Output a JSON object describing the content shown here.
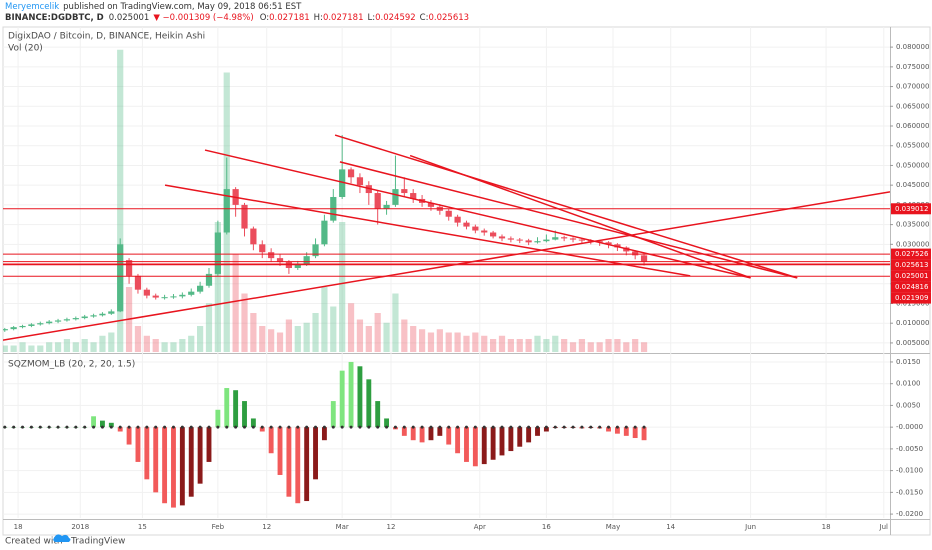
{
  "header": {
    "author": "Meryemcelik",
    "published": "published on TradingView.com, May 09, 2018 06:51 EST",
    "symbol": "BINANCE:DGDBTC, D",
    "last": "0.025001",
    "change": "▼ −0.001309 (−4.98%)",
    "ohlc": [
      "O:",
      "0.027181",
      "H:",
      "0.027181",
      "L:",
      "0.024592",
      "C:",
      "0.025613"
    ]
  },
  "chart_data": [
    {
      "type": "candlestick",
      "title": "DigixDAO / Bitcoin, D, BINANCE, Heikin Ashi",
      "up_color": "#53b987",
      "down_color": "#eb4d5c",
      "line_color": "#e8141e",
      "x": [
        -17,
        -15,
        -13,
        -11,
        -9,
        -7,
        -5,
        -3,
        -1,
        1,
        3,
        5,
        7,
        9,
        11,
        13,
        15,
        17,
        19,
        21,
        23,
        25,
        27,
        29,
        31,
        33,
        35,
        37,
        39,
        41,
        43,
        45,
        47,
        49,
        51,
        53,
        55,
        57,
        59,
        61,
        63,
        65,
        67,
        69,
        71,
        73,
        75,
        77,
        79,
        81,
        83,
        85,
        87,
        89,
        91,
        93,
        95,
        97,
        99,
        101,
        103,
        105,
        107,
        109,
        111,
        113,
        115,
        117,
        119,
        121,
        123,
        125,
        127
      ],
      "open": [
        0.0082,
        0.0085,
        0.009,
        0.0093,
        0.0097,
        0.01,
        0.0104,
        0.0107,
        0.011,
        0.0113,
        0.0117,
        0.012,
        0.0124,
        0.013,
        0.026,
        0.022,
        0.0185,
        0.017,
        0.0165,
        0.0166,
        0.0168,
        0.0172,
        0.018,
        0.0195,
        0.0225,
        0.033,
        0.044,
        0.04,
        0.034,
        0.03,
        0.028,
        0.0265,
        0.0255,
        0.024,
        0.025,
        0.027,
        0.03,
        0.036,
        0.042,
        0.049,
        0.047,
        0.045,
        0.043,
        0.039,
        0.04,
        0.044,
        0.043,
        0.0415,
        0.0405,
        0.0395,
        0.0385,
        0.037,
        0.0355,
        0.0345,
        0.0335,
        0.033,
        0.032,
        0.0315,
        0.0312,
        0.031,
        0.0305,
        0.0308,
        0.0312,
        0.0318,
        0.0315,
        0.0312,
        0.031,
        0.0308,
        0.0305,
        0.03,
        0.0292,
        0.0282,
        0.0272
      ],
      "high": [
        0.0088,
        0.0093,
        0.0096,
        0.01,
        0.0104,
        0.0108,
        0.0111,
        0.0114,
        0.0117,
        0.0121,
        0.0124,
        0.0128,
        0.0135,
        0.0315,
        0.0265,
        0.0225,
        0.019,
        0.0175,
        0.0172,
        0.0174,
        0.0178,
        0.0188,
        0.0205,
        0.024,
        0.036,
        0.052,
        0.0445,
        0.0405,
        0.0345,
        0.031,
        0.029,
        0.0275,
        0.026,
        0.0258,
        0.028,
        0.0315,
        0.0375,
        0.044,
        0.0577,
        0.0495,
        0.048,
        0.046,
        0.0435,
        0.041,
        0.0525,
        0.047,
        0.044,
        0.0425,
        0.0412,
        0.0402,
        0.039,
        0.0375,
        0.036,
        0.035,
        0.034,
        0.0334,
        0.0325,
        0.032,
        0.0316,
        0.0314,
        0.0318,
        0.0325,
        0.0335,
        0.0322,
        0.0318,
        0.0316,
        0.0313,
        0.0311,
        0.0308,
        0.0303,
        0.0295,
        0.0285,
        0.0274
      ],
      "low": [
        0.0078,
        0.0082,
        0.0087,
        0.009,
        0.0094,
        0.0097,
        0.01,
        0.0104,
        0.0107,
        0.011,
        0.0114,
        0.0117,
        0.0121,
        0.0128,
        0.02,
        0.0175,
        0.0163,
        0.016,
        0.016,
        0.0162,
        0.0163,
        0.0168,
        0.0175,
        0.019,
        0.022,
        0.0325,
        0.037,
        0.032,
        0.0285,
        0.0265,
        0.0255,
        0.0245,
        0.0225,
        0.0235,
        0.0245,
        0.0265,
        0.0295,
        0.0355,
        0.0415,
        0.0455,
        0.043,
        0.04,
        0.035,
        0.0375,
        0.0395,
        0.042,
        0.0405,
        0.0395,
        0.0385,
        0.0375,
        0.036,
        0.0345,
        0.0338,
        0.0328,
        0.0322,
        0.0315,
        0.0308,
        0.0305,
        0.0303,
        0.0298,
        0.0302,
        0.0305,
        0.031,
        0.0308,
        0.0305,
        0.0303,
        0.03,
        0.0296,
        0.029,
        0.0283,
        0.0272,
        0.0262,
        0.0246
      ],
      "close": [
        0.0085,
        0.009,
        0.0093,
        0.0097,
        0.01,
        0.0104,
        0.0107,
        0.011,
        0.0113,
        0.0117,
        0.012,
        0.0124,
        0.013,
        0.03,
        0.022,
        0.0185,
        0.017,
        0.0165,
        0.0166,
        0.0168,
        0.0172,
        0.018,
        0.0195,
        0.0225,
        0.033,
        0.044,
        0.04,
        0.034,
        0.03,
        0.028,
        0.0265,
        0.0255,
        0.024,
        0.025,
        0.027,
        0.03,
        0.036,
        0.042,
        0.049,
        0.047,
        0.045,
        0.043,
        0.039,
        0.04,
        0.044,
        0.043,
        0.0415,
        0.0405,
        0.0395,
        0.0385,
        0.037,
        0.0355,
        0.0345,
        0.0335,
        0.033,
        0.032,
        0.0315,
        0.0312,
        0.031,
        0.0305,
        0.0308,
        0.0312,
        0.0318,
        0.0315,
        0.0312,
        0.031,
        0.0308,
        0.0305,
        0.03,
        0.0292,
        0.0282,
        0.0272,
        0.0256
      ],
      "volume": {
        "name": "Vol (20)",
        "vlim": [
          0,
          100
        ],
        "values": [
          2,
          2,
          3,
          2,
          2,
          3,
          3,
          4,
          3,
          4,
          3,
          5,
          6,
          93,
          20,
          8,
          5,
          4,
          3,
          3,
          4,
          5,
          8,
          15,
          40,
          86,
          30,
          18,
          12,
          8,
          7,
          6,
          10,
          8,
          9,
          12,
          20,
          14,
          40,
          15,
          10,
          8,
          12,
          9,
          18,
          10,
          8,
          7,
          6,
          7,
          6,
          6,
          5,
          6,
          5,
          4,
          5,
          4,
          4,
          4,
          5,
          4,
          5,
          4,
          3,
          4,
          3,
          3,
          4,
          4,
          3,
          4,
          3
        ]
      },
      "xlim": [
        -17.4,
        182.4
      ],
      "ylim": [
        0.0027,
        0.0851
      ],
      "xticks": [
        {
          "value": -14,
          "label": "18"
        },
        {
          "value": 0,
          "label": "2018"
        },
        {
          "value": 14,
          "label": "15"
        },
        {
          "value": 31,
          "label": "Feb"
        },
        {
          "value": 42,
          "label": "12"
        },
        {
          "value": 59,
          "label": "Mar"
        },
        {
          "value": 70,
          "label": "12"
        },
        {
          "value": 90,
          "label": "Apr"
        },
        {
          "value": 105,
          "label": "16"
        },
        {
          "value": 120,
          "label": "May"
        },
        {
          "value": 133,
          "label": "14"
        },
        {
          "value": 151,
          "label": "Jun"
        },
        {
          "value": 168,
          "label": "18"
        },
        {
          "value": 181,
          "label": "Jul"
        }
      ],
      "yticks": [
        {
          "value": 0.005,
          "label": "0.005000"
        },
        {
          "value": 0.01,
          "label": "0.010000"
        },
        {
          "value": 0.015,
          "label": "0.015000"
        },
        {
          "value": 0.02,
          "label": "0.020000"
        },
        {
          "value": 0.025,
          "label": "0.025000"
        },
        {
          "value": 0.03,
          "label": "0.030000"
        },
        {
          "value": 0.035,
          "label": "0.035000"
        },
        {
          "value": 0.04,
          "label": "0.040000"
        },
        {
          "value": 0.045,
          "label": "0.045000"
        },
        {
          "value": 0.05,
          "label": "0.050000"
        },
        {
          "value": 0.055,
          "label": "0.055000"
        },
        {
          "value": 0.06,
          "label": "0.060000"
        },
        {
          "value": 0.065,
          "label": "0.065000"
        },
        {
          "value": 0.07,
          "label": "0.070000"
        },
        {
          "value": 0.075,
          "label": "0.075000"
        },
        {
          "value": 0.08,
          "label": "0.080000"
        }
      ],
      "price_levels": [
        {
          "value": 0.039012,
          "label": "0.039012"
        },
        {
          "value": 0.027526,
          "label": "0.027526"
        },
        {
          "value": 0.025613,
          "label": "0.025613"
        },
        {
          "value": 0.025001,
          "label": "0.025001"
        },
        {
          "value": 0.024816,
          "label": "0.024816"
        },
        {
          "value": 0.021909,
          "label": "0.021909"
        }
      ],
      "trend_lines": [
        {
          "x": [
            -17.4,
            182.4
          ],
          "y": [
            0.0057,
            0.0433
          ]
        },
        {
          "x": [
            28.1,
            151
          ],
          "y": [
            0.0539,
            0.0215
          ]
        },
        {
          "x": [
            19.1,
            137.4
          ],
          "y": [
            0.045,
            0.022
          ]
        },
        {
          "x": [
            57.4,
            161.5
          ],
          "y": [
            0.0577,
            0.0215
          ]
        },
        {
          "x": [
            58.5,
            161.5
          ],
          "y": [
            0.0509,
            0.0215
          ]
        },
        {
          "x": [
            74.3,
            151
          ],
          "y": [
            0.0525,
            0.0215
          ]
        }
      ]
    },
    {
      "type": "histogram",
      "title": "SQZMOM_LB (20, 2, 20, 1.5)",
      "colors": [
        "#7ee57e",
        "#2e9e40",
        "#f25a5a",
        "#8b1a1a"
      ],
      "x": [
        -17,
        -15,
        -13,
        -11,
        -9,
        -7,
        -5,
        -3,
        -1,
        1,
        3,
        5,
        7,
        9,
        11,
        13,
        15,
        17,
        19,
        21,
        23,
        25,
        27,
        29,
        31,
        33,
        35,
        37,
        39,
        41,
        43,
        45,
        47,
        49,
        51,
        53,
        55,
        57,
        59,
        61,
        63,
        65,
        67,
        69,
        71,
        73,
        75,
        77,
        79,
        81,
        83,
        85,
        87,
        89,
        91,
        93,
        95,
        97,
        99,
        101,
        103,
        105,
        107,
        109,
        111,
        113,
        115,
        117,
        119,
        121,
        123,
        125,
        127
      ],
      "values": [
        0,
        0,
        0,
        0,
        0,
        0,
        0,
        0,
        0,
        0,
        0.0025,
        0.0015,
        0.001,
        -0.001,
        -0.004,
        -0.008,
        -0.012,
        -0.015,
        -0.0175,
        -0.0185,
        -0.018,
        -0.016,
        -0.013,
        -0.008,
        0.004,
        0.009,
        0.0085,
        0.006,
        0.002,
        -0.001,
        -0.006,
        -0.011,
        -0.016,
        -0.0175,
        -0.017,
        -0.012,
        -0.003,
        0.006,
        0.013,
        0.015,
        0.014,
        0.011,
        0.006,
        0.002,
        -0.0005,
        -0.002,
        -0.003,
        -0.0035,
        -0.003,
        -0.002,
        -0.004,
        -0.006,
        -0.008,
        -0.009,
        -0.0085,
        -0.0075,
        -0.0065,
        -0.0055,
        -0.0045,
        -0.0035,
        -0.002,
        -0.001,
        -0.0002,
        -0.0002,
        -0.0002,
        -0.0003,
        -0.0002,
        -0.0003,
        -0.001,
        -0.0015,
        -0.002,
        -0.0025,
        -0.003
      ],
      "xlim": [
        -17.4,
        182.4
      ],
      "ylim": [
        -0.0209,
        0.0166
      ],
      "yticks": [
        {
          "value": 0.015,
          "label": "0.0150"
        },
        {
          "value": 0.01,
          "label": "0.0100"
        },
        {
          "value": 0.005,
          "label": "0.0050"
        },
        {
          "value": 0,
          "label": "-0.0000"
        },
        {
          "value": -0.005,
          "label": "-0.0050"
        },
        {
          "value": -0.01,
          "label": "-0.0100"
        },
        {
          "value": -0.015,
          "label": "-0.0150"
        },
        {
          "value": -0.02,
          "label": "-0.0200"
        }
      ]
    }
  ],
  "footer": {
    "created": "Created with",
    "brand": "TradingView"
  }
}
